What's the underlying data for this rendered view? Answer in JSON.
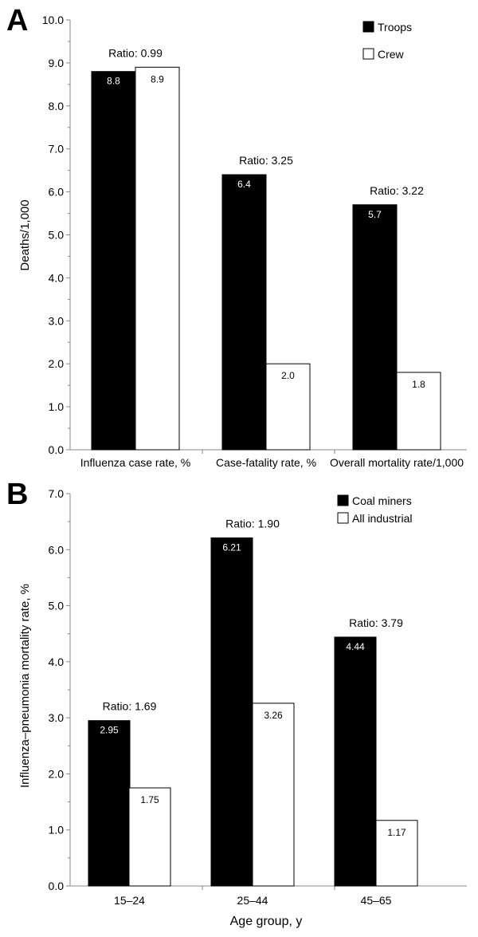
{
  "chart_data": [
    {
      "panel_label": "A",
      "type": "bar",
      "categories": [
        "Influenza case rate, %",
        "Case-fatality rate, %",
        "Overall mortality rate/1,000"
      ],
      "series": [
        {
          "name": "Troops",
          "values": [
            8.8,
            6.4,
            5.7
          ],
          "labels": [
            "8.8",
            "6.4",
            "5.7"
          ],
          "color": "#000000"
        },
        {
          "name": "Crew",
          "values": [
            8.9,
            2.0,
            1.8
          ],
          "labels": [
            "8.9",
            "2.0",
            "1.8"
          ],
          "color": "#ffffff"
        }
      ],
      "annotations": [
        "Ratio: 0.99",
        "Ratio: 3.25",
        "Ratio: 3.22"
      ],
      "xlabel": "",
      "ylabel": "Deaths/1,000",
      "ylim": [
        0,
        10
      ],
      "yticks": [
        "0.0",
        "1.0",
        "2.0",
        "3.0",
        "4.0",
        "5.0",
        "6.0",
        "7.0",
        "8.0",
        "9.0",
        "10.0"
      ],
      "legend_position": "top-right",
      "grid": false
    },
    {
      "panel_label": "B",
      "type": "bar",
      "categories": [
        "15–24",
        "25–44",
        "45–65"
      ],
      "series": [
        {
          "name": "Coal miners",
          "values": [
            2.95,
            6.21,
            4.44
          ],
          "labels": [
            "2.95",
            "6.21",
            "4.44"
          ],
          "color": "#000000"
        },
        {
          "name": "All industrial",
          "values": [
            1.75,
            3.26,
            1.17
          ],
          "labels": [
            "1.75",
            "3.26",
            "1.17"
          ],
          "color": "#ffffff"
        }
      ],
      "annotations": [
        "Ratio: 1.69",
        "Ratio: 1.90",
        "Ratio: 3.79"
      ],
      "xlabel": "Age group, y",
      "ylabel": "Influenza–pneumonia mortality rate, %",
      "ylim": [
        0,
        7
      ],
      "yticks": [
        "0.0",
        "1.0",
        "2.0",
        "3.0",
        "4.0",
        "5.0",
        "6.0",
        "7.0"
      ],
      "legend_position": "top-right",
      "grid": false
    }
  ]
}
